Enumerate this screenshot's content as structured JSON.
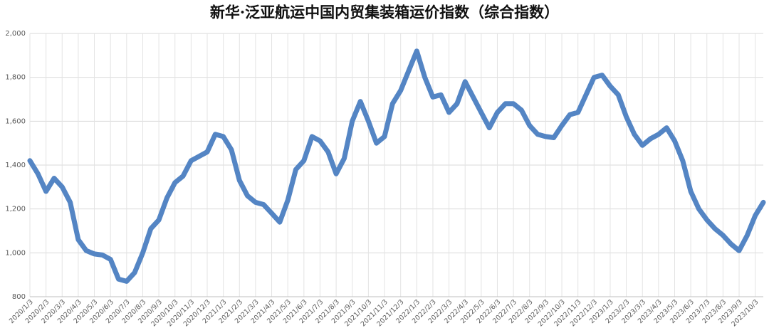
{
  "chart_data": {
    "type": "line",
    "title": "新华·泛亚航运中国内贸集装箱运价指数（综合指数）",
    "categories": [
      "2020/1/3",
      null,
      "2020/2/3",
      null,
      "2020/3/3",
      null,
      "2020/4/3",
      null,
      "2020/5/3",
      null,
      "2020/6/3",
      null,
      "2020/7/3",
      null,
      "2020/8/3",
      null,
      "2020/9/3",
      null,
      "2020/10/3",
      null,
      "2020/11/3",
      null,
      "2020/12/3",
      null,
      "2021/1/3",
      null,
      "2021/2/3",
      null,
      "2021/3/3",
      null,
      "2021/4/3",
      null,
      "2021/5/3",
      null,
      "2021/6/3",
      null,
      "2021/7/3",
      null,
      "2021/8/3",
      null,
      "2021/9/3",
      null,
      "2021/10/3",
      null,
      "2021/11/3",
      null,
      "2021/12/3",
      null,
      "2022/1/3",
      null,
      "2022/2/3",
      null,
      "2022/3/3",
      null,
      "2022/4/3",
      null,
      "2022/5/3",
      null,
      "2022/6/3",
      null,
      "2022/7/3",
      null,
      "2022/8/3",
      null,
      "2022/9/3",
      null,
      "2022/10/3",
      null,
      "2022/11/3",
      null,
      "2022/12/3",
      null,
      "2023/1/3",
      null,
      "2023/2/3",
      null,
      "2023/3/3",
      null,
      "2023/4/3",
      null,
      "2023/5/3",
      null,
      "2023/6/3",
      null,
      "2023/7/3",
      null,
      "2023/8/3",
      null,
      "2023/9/3",
      null,
      "2023/10/3",
      null
    ],
    "series": [
      {
        "name": "综合指数",
        "color": "#5485c4",
        "values": [
          1420,
          1360,
          1280,
          1340,
          1300,
          1230,
          1060,
          1010,
          995,
          990,
          970,
          880,
          870,
          910,
          1000,
          1110,
          1150,
          1250,
          1320,
          1350,
          1420,
          1440,
          1460,
          1540,
          1530,
          1470,
          1330,
          1260,
          1230,
          1220,
          1180,
          1140,
          1240,
          1380,
          1420,
          1530,
          1510,
          1460,
          1360,
          1430,
          1600,
          1690,
          1600,
          1500,
          1530,
          1680,
          1740,
          1830,
          1920,
          1800,
          1710,
          1720,
          1640,
          1680,
          1780,
          1710,
          1640,
          1570,
          1640,
          1680,
          1680,
          1650,
          1580,
          1540,
          1530,
          1525,
          1580,
          1630,
          1640,
          1720,
          1800,
          1810,
          1760,
          1720,
          1620,
          1540,
          1490,
          1520,
          1540,
          1570,
          1510,
          1420,
          1280,
          1200,
          1150,
          1110,
          1080,
          1040,
          1010,
          1080,
          1170,
          1230
        ]
      }
    ],
    "ylim": [
      800,
      2000
    ],
    "yticks": [
      {
        "value": 800,
        "label": "800"
      },
      {
        "value": 1000,
        "label": "1,000"
      },
      {
        "value": 1200,
        "label": "1,200"
      },
      {
        "value": 1400,
        "label": "1,400"
      },
      {
        "value": 1600,
        "label": "1,600"
      },
      {
        "value": 1800,
        "label": "1,800"
      },
      {
        "value": 2000,
        "label": "2,000"
      }
    ],
    "grid": true
  }
}
